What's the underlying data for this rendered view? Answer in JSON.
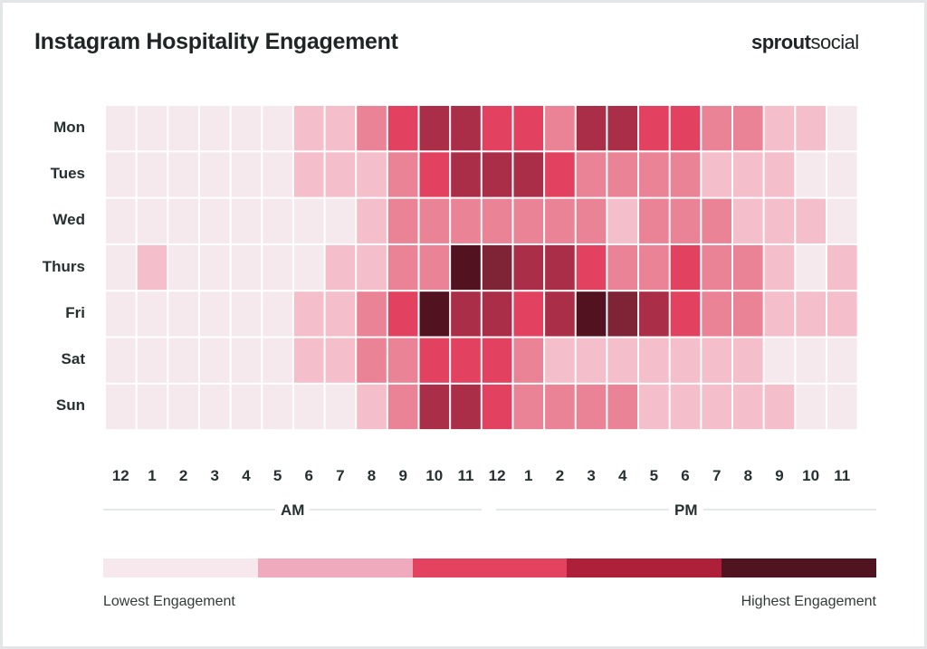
{
  "header": {
    "title": "Instagram Hospitality Engagement",
    "logo_bold": "sprout",
    "logo_light": "social"
  },
  "chart_data": {
    "type": "heatmap",
    "title": "Instagram Hospitality Engagement",
    "rows": [
      "Mon",
      "Tues",
      "Wed",
      "Thurs",
      "Fri",
      "Sat",
      "Sun"
    ],
    "columns": [
      "12",
      "1",
      "2",
      "3",
      "4",
      "5",
      "6",
      "7",
      "8",
      "9",
      "10",
      "11",
      "12",
      "1",
      "2",
      "3",
      "4",
      "5",
      "6",
      "7",
      "8",
      "9",
      "10",
      "11"
    ],
    "column_groups": [
      {
        "label": "AM",
        "start": 0,
        "end": 11
      },
      {
        "label": "PM",
        "start": 12,
        "end": 23
      }
    ],
    "value_scale": "engagement level 0 (lowest) to 6 (highest)",
    "values": [
      [
        0,
        0,
        0,
        0,
        0,
        0,
        1,
        1,
        2,
        3,
        4,
        4,
        3,
        3,
        2,
        4,
        4,
        3,
        3,
        2,
        2,
        1,
        1,
        0
      ],
      [
        0,
        0,
        0,
        0,
        0,
        0,
        1,
        1,
        1,
        2,
        3,
        4,
        4,
        4,
        3,
        2,
        2,
        2,
        2,
        1,
        1,
        1,
        0,
        0
      ],
      [
        0,
        0,
        0,
        0,
        0,
        0,
        0,
        0,
        1,
        2,
        2,
        2,
        2,
        2,
        2,
        2,
        1,
        2,
        2,
        2,
        1,
        1,
        1,
        0
      ],
      [
        0,
        1,
        0,
        0,
        0,
        0,
        0,
        1,
        1,
        2,
        2,
        6,
        5,
        4,
        4,
        3,
        2,
        2,
        3,
        2,
        2,
        1,
        0,
        1
      ],
      [
        0,
        0,
        0,
        0,
        0,
        0,
        1,
        1,
        2,
        3,
        6,
        4,
        4,
        3,
        4,
        6,
        5,
        4,
        3,
        2,
        2,
        1,
        1,
        1
      ],
      [
        0,
        0,
        0,
        0,
        0,
        0,
        1,
        1,
        2,
        2,
        3,
        3,
        3,
        2,
        1,
        1,
        1,
        1,
        1,
        1,
        1,
        0,
        0,
        0
      ],
      [
        0,
        0,
        0,
        0,
        0,
        0,
        0,
        0,
        1,
        2,
        4,
        4,
        3,
        2,
        2,
        2,
        2,
        1,
        1,
        1,
        1,
        1,
        0,
        0
      ]
    ],
    "level_colors": [
      "#f5e9ee",
      "#f4bfca",
      "#ea8396",
      "#e2425f",
      "#ab2e48",
      "#7f2337",
      "#521220"
    ],
    "legend": {
      "colors": [
        "#f7e8ee",
        "#f0aabe",
        "#e44360",
        "#ae1f39",
        "#501320"
      ],
      "low_label": "Lowest Engagement",
      "high_label": "Highest Engagement",
      "placement": "bottom"
    },
    "grid": false
  }
}
